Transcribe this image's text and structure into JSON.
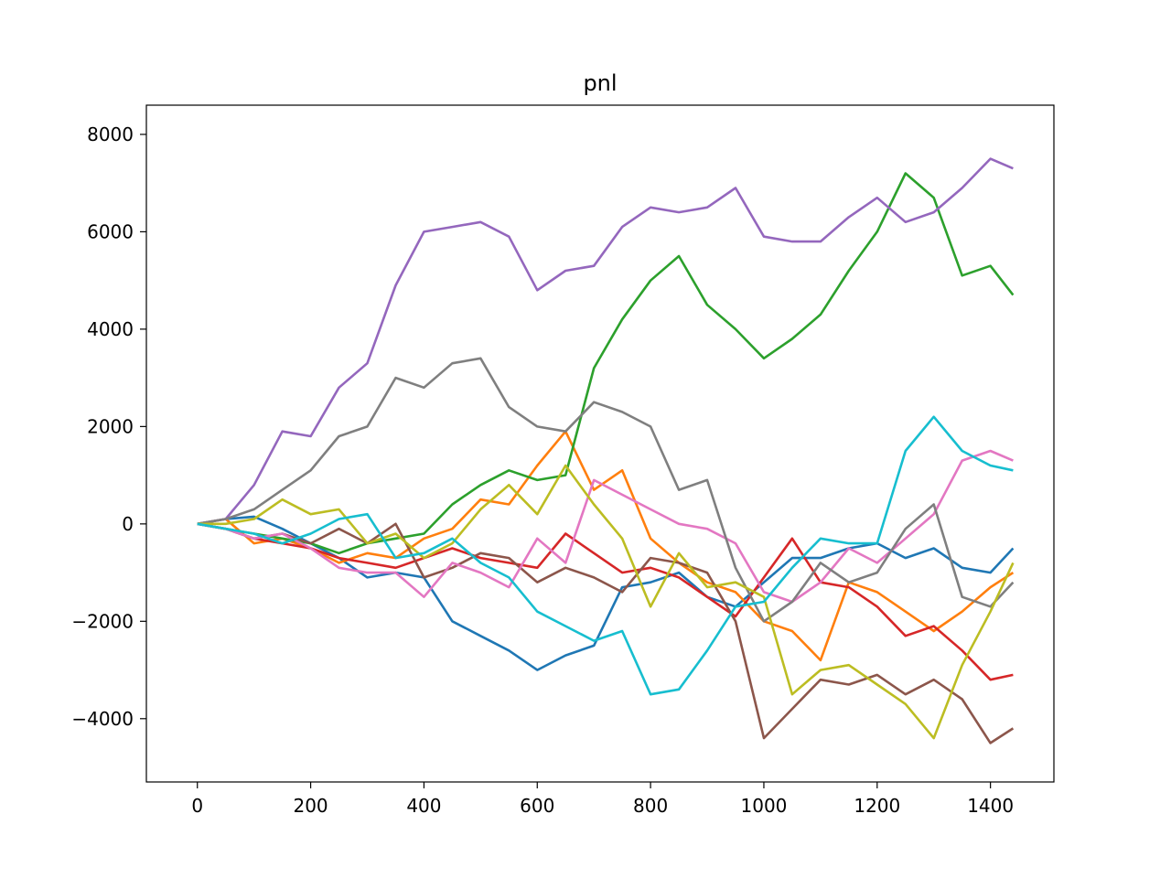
{
  "chart_data": {
    "type": "line",
    "title": "pnl",
    "xlabel": "",
    "ylabel": "",
    "xlim": [
      -90,
      1512
    ],
    "ylim": [
      -5300,
      8600
    ],
    "x_ticks": [
      0,
      200,
      400,
      600,
      800,
      1000,
      1200,
      1400
    ],
    "y_ticks": [
      -4000,
      -2000,
      0,
      2000,
      4000,
      6000,
      8000
    ],
    "x_tick_labels": [
      "0",
      "200",
      "400",
      "600",
      "800",
      "1000",
      "1200",
      "1400"
    ],
    "y_tick_labels": [
      "−4000",
      "−2000",
      "0",
      "2000",
      "4000",
      "6000",
      "8000"
    ],
    "grid": false,
    "legend": "none",
    "series": [
      {
        "color": "#1f77b4",
        "x": [
          0,
          50,
          100,
          150,
          200,
          250,
          300,
          350,
          400,
          450,
          500,
          550,
          600,
          650,
          700,
          750,
          800,
          850,
          900,
          950,
          1000,
          1050,
          1100,
          1150,
          1200,
          1250,
          1300,
          1350,
          1400,
          1440
        ],
        "y": [
          0,
          100,
          150,
          -100,
          -400,
          -700,
          -1100,
          -1000,
          -1100,
          -2000,
          -2300,
          -2600,
          -3000,
          -2700,
          -2500,
          -1300,
          -1200,
          -1000,
          -1500,
          -1700,
          -1200,
          -700,
          -700,
          -500,
          -400,
          -700,
          -500,
          -900,
          -1000,
          -500
        ]
      },
      {
        "color": "#ff7f0e",
        "x": [
          0,
          50,
          100,
          150,
          200,
          250,
          300,
          350,
          400,
          450,
          500,
          550,
          600,
          650,
          700,
          750,
          800,
          850,
          900,
          950,
          1000,
          1050,
          1100,
          1150,
          1200,
          1250,
          1300,
          1350,
          1400,
          1440
        ],
        "y": [
          0,
          100,
          -400,
          -300,
          -500,
          -800,
          -600,
          -700,
          -300,
          -100,
          500,
          400,
          1200,
          1900,
          700,
          1100,
          -300,
          -800,
          -1200,
          -1400,
          -2000,
          -2200,
          -2800,
          -1200,
          -1400,
          -1800,
          -2200,
          -1800,
          -1300,
          -1000
        ]
      },
      {
        "color": "#2ca02c",
        "x": [
          0,
          50,
          100,
          150,
          200,
          250,
          300,
          350,
          400,
          450,
          500,
          550,
          600,
          650,
          700,
          750,
          800,
          850,
          900,
          950,
          1000,
          1050,
          1100,
          1150,
          1200,
          1250,
          1300,
          1350,
          1400,
          1440
        ],
        "y": [
          0,
          -100,
          -200,
          -300,
          -400,
          -600,
          -400,
          -300,
          -200,
          400,
          800,
          1100,
          900,
          1000,
          3200,
          4200,
          5000,
          5500,
          4500,
          4000,
          3400,
          3800,
          4300,
          5200,
          6000,
          7200,
          6700,
          5100,
          5300,
          4700
        ]
      },
      {
        "color": "#d62728",
        "x": [
          0,
          50,
          100,
          150,
          200,
          250,
          300,
          350,
          400,
          450,
          500,
          550,
          600,
          650,
          700,
          750,
          800,
          850,
          900,
          950,
          1000,
          1050,
          1100,
          1150,
          1200,
          1250,
          1300,
          1350,
          1400,
          1440
        ],
        "y": [
          0,
          -100,
          -300,
          -400,
          -500,
          -700,
          -800,
          -900,
          -700,
          -500,
          -700,
          -800,
          -900,
          -200,
          -600,
          -1000,
          -900,
          -1100,
          -1500,
          -1900,
          -1100,
          -300,
          -1200,
          -1300,
          -1700,
          -2300,
          -2100,
          -2600,
          -3200,
          -3100
        ]
      },
      {
        "color": "#9467bd",
        "x": [
          0,
          50,
          100,
          150,
          200,
          250,
          300,
          350,
          400,
          450,
          500,
          550,
          600,
          650,
          700,
          750,
          800,
          850,
          900,
          950,
          1000,
          1050,
          1100,
          1150,
          1200,
          1250,
          1300,
          1350,
          1400,
          1440
        ],
        "y": [
          0,
          100,
          800,
          1900,
          1800,
          2800,
          3300,
          4900,
          6000,
          6100,
          6200,
          5900,
          4800,
          5200,
          5300,
          6100,
          6500,
          6400,
          6500,
          6900,
          5900,
          5800,
          5800,
          6300,
          6700,
          6200,
          6400,
          6900,
          7500,
          7300
        ]
      },
      {
        "color": "#8c564b",
        "x": [
          0,
          50,
          100,
          150,
          200,
          250,
          300,
          350,
          400,
          450,
          500,
          550,
          600,
          650,
          700,
          750,
          800,
          850,
          900,
          950,
          1000,
          1050,
          1100,
          1150,
          1200,
          1250,
          1300,
          1350,
          1400,
          1440
        ],
        "y": [
          0,
          -100,
          -300,
          -200,
          -400,
          -100,
          -400,
          0,
          -1100,
          -900,
          -600,
          -700,
          -1200,
          -900,
          -1100,
          -1400,
          -700,
          -800,
          -1000,
          -2000,
          -4400,
          -3800,
          -3200,
          -3300,
          -3100,
          -3500,
          -3200,
          -3600,
          -4500,
          -4200
        ]
      },
      {
        "color": "#e377c2",
        "x": [
          0,
          50,
          100,
          150,
          200,
          250,
          300,
          350,
          400,
          450,
          500,
          550,
          600,
          650,
          700,
          750,
          800,
          850,
          900,
          950,
          1000,
          1050,
          1100,
          1150,
          1200,
          1250,
          1300,
          1350,
          1400,
          1440
        ],
        "y": [
          0,
          -100,
          -300,
          -200,
          -500,
          -900,
          -1000,
          -1000,
          -1500,
          -800,
          -1000,
          -1300,
          -300,
          -800,
          900,
          600,
          300,
          0,
          -100,
          -400,
          -1400,
          -1600,
          -1200,
          -500,
          -800,
          -300,
          200,
          1300,
          1500,
          1300
        ]
      },
      {
        "color": "#7f7f7f",
        "x": [
          0,
          50,
          100,
          150,
          200,
          250,
          300,
          350,
          400,
          450,
          500,
          550,
          600,
          650,
          700,
          750,
          800,
          850,
          900,
          950,
          1000,
          1050,
          1100,
          1150,
          1200,
          1250,
          1300,
          1350,
          1400,
          1440
        ],
        "y": [
          0,
          100,
          300,
          700,
          1100,
          1800,
          2000,
          3000,
          2800,
          3300,
          3400,
          2400,
          2000,
          1900,
          2500,
          2300,
          2000,
          700,
          900,
          -900,
          -2000,
          -1600,
          -800,
          -1200,
          -1000,
          -100,
          400,
          -1500,
          -1700,
          -1200
        ]
      },
      {
        "color": "#bcbd22",
        "x": [
          0,
          50,
          100,
          150,
          200,
          250,
          300,
          350,
          400,
          450,
          500,
          550,
          600,
          650,
          700,
          750,
          800,
          850,
          900,
          950,
          1000,
          1050,
          1100,
          1150,
          1200,
          1250,
          1300,
          1350,
          1400,
          1440
        ],
        "y": [
          0,
          0,
          100,
          500,
          200,
          300,
          -400,
          -200,
          -700,
          -400,
          300,
          800,
          200,
          1200,
          400,
          -300,
          -1700,
          -600,
          -1300,
          -1200,
          -1500,
          -3500,
          -3000,
          -2900,
          -3300,
          -3700,
          -4400,
          -2900,
          -1800,
          -800
        ]
      },
      {
        "color": "#17becf",
        "x": [
          0,
          50,
          100,
          150,
          200,
          250,
          300,
          350,
          400,
          450,
          500,
          550,
          600,
          650,
          700,
          750,
          800,
          850,
          900,
          950,
          1000,
          1050,
          1100,
          1150,
          1200,
          1250,
          1300,
          1350,
          1400,
          1440
        ],
        "y": [
          0,
          -100,
          -200,
          -400,
          -200,
          100,
          200,
          -700,
          -600,
          -300,
          -800,
          -1100,
          -1800,
          -2100,
          -2400,
          -2200,
          -3500,
          -3400,
          -2600,
          -1700,
          -1600,
          -900,
          -300,
          -400,
          -400,
          1500,
          2200,
          1500,
          1200,
          1100
        ]
      }
    ]
  }
}
